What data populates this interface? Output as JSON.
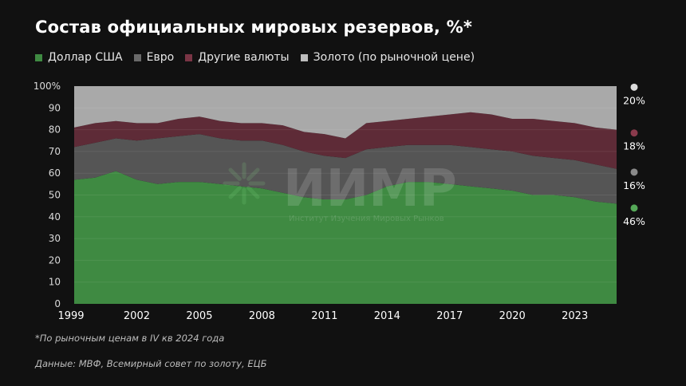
{
  "title": "Состав официальных мировых резервов, %*",
  "footnote": "*По рыночным ценам в IV кв 2024 года",
  "source": "Данные: МВФ, Всемирный совет по золоту, ЕЦБ",
  "watermark": {
    "text": "ИИМР",
    "subtitle": "Институт Изучения Мировых Рынков"
  },
  "colors": {
    "background": "#111111",
    "usd": "#3f8a42",
    "eur": "#555555",
    "other": "#5e2b37",
    "gold": "#a9a9a9",
    "text": "#ffffff"
  },
  "chart_data": {
    "type": "area",
    "stacked": true,
    "title": "Состав официальных мировых резервов, %*",
    "xlabel": "",
    "ylabel": "",
    "xlim": [
      1999,
      2025
    ],
    "ylim": [
      0,
      100
    ],
    "yticks": [
      0,
      10,
      20,
      30,
      40,
      50,
      60,
      70,
      80,
      90,
      100
    ],
    "ytick_labels": [
      "0",
      "10",
      "20",
      "30",
      "40",
      "50",
      "60",
      "70",
      "80",
      "90",
      "100%"
    ],
    "xticks": [
      1999,
      2002,
      2005,
      2008,
      2011,
      2014,
      2017,
      2020,
      2023
    ],
    "xtick_labels": [
      "1999",
      "2002",
      "2005",
      "2008",
      "2011",
      "2014",
      "2017",
      "2020",
      "2023"
    ],
    "legend_position": "top",
    "x": [
      1999,
      2000,
      2001,
      2002,
      2003,
      2004,
      2005,
      2006,
      2007,
      2008,
      2009,
      2010,
      2011,
      2012,
      2013,
      2014,
      2015,
      2016,
      2017,
      2018,
      2019,
      2020,
      2021,
      2022,
      2023,
      2024,
      2025
    ],
    "series": [
      {
        "name": "Доллар США",
        "values": [
          57,
          58,
          61,
          57,
          55,
          56,
          56,
          55,
          54,
          53,
          51,
          49,
          48,
          48,
          50,
          54,
          56,
          56,
          55,
          54,
          53,
          52,
          50,
          50,
          49,
          47,
          46
        ]
      },
      {
        "name": "Евро",
        "values": [
          15,
          16,
          15,
          18,
          21,
          21,
          22,
          21,
          21,
          22,
          22,
          21,
          20,
          19,
          21,
          18,
          17,
          17,
          18,
          18,
          18,
          18,
          18,
          17,
          17,
          17,
          16
        ]
      },
      {
        "name": "Другие валюты",
        "values": [
          9,
          9,
          8,
          8,
          7,
          8,
          8,
          8,
          8,
          8,
          9,
          9,
          10,
          9,
          12,
          12,
          12,
          13,
          14,
          16,
          16,
          15,
          17,
          17,
          17,
          17,
          18
        ]
      },
      {
        "name": "Золото (по рыночной цене)",
        "values": [
          19,
          17,
          16,
          17,
          17,
          15,
          14,
          16,
          17,
          17,
          18,
          21,
          22,
          24,
          17,
          16,
          15,
          14,
          13,
          12,
          13,
          15,
          15,
          16,
          17,
          19,
          20
        ]
      }
    ],
    "end_labels": [
      {
        "series": "Золото (по рыночной цене)",
        "label": "20%"
      },
      {
        "series": "Другие валюты",
        "label": "18%"
      },
      {
        "series": "Евро",
        "label": "16%"
      },
      {
        "series": "Доллар США",
        "label": "46%"
      }
    ]
  }
}
